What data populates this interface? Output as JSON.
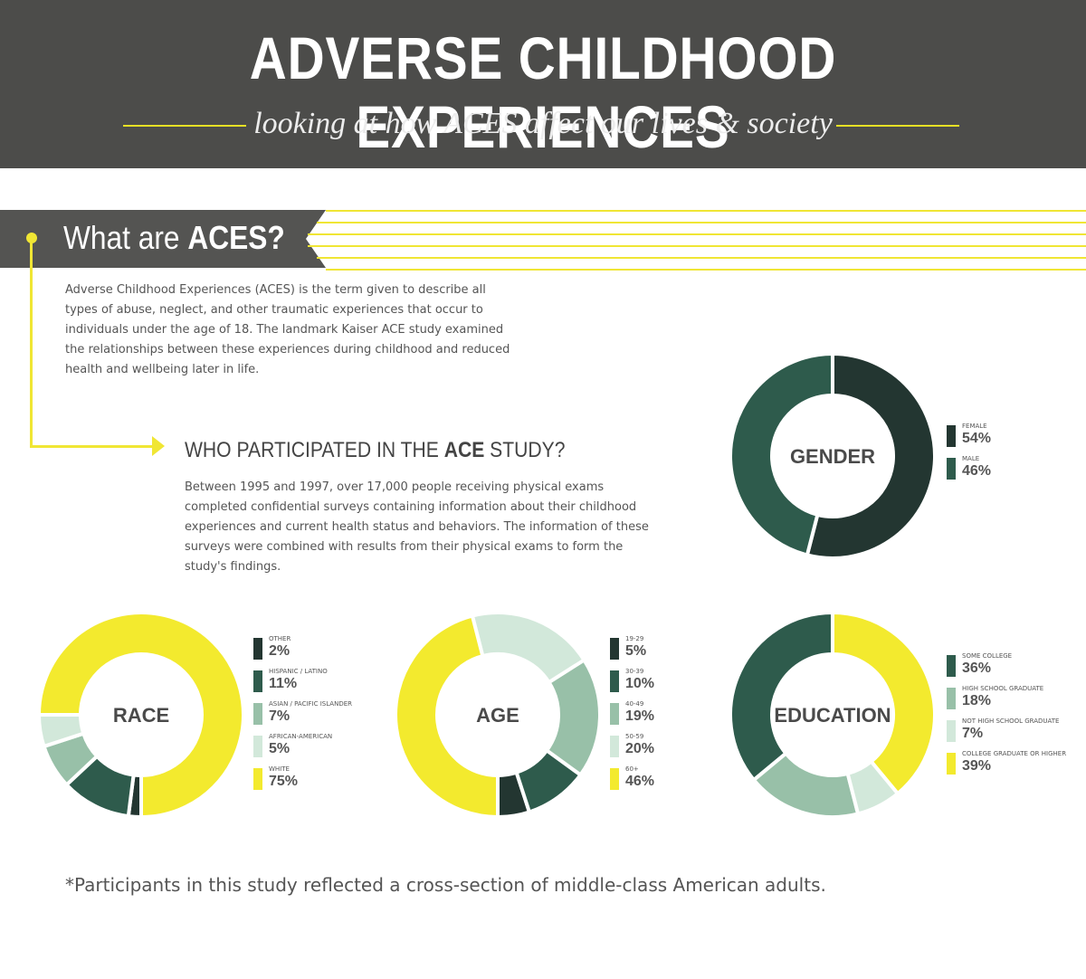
{
  "header": {
    "title": "ADVERSE CHILDHOOD EXPERIENCES",
    "subtitle": "looking at how ACES affect our lives & society"
  },
  "section": {
    "title_prefix": "What are ",
    "title_emphasis": "ACES?",
    "body": "Adverse Childhood Experiences (ACES) is the term given to describe all types of abuse, neglect, and other traumatic experiences that occur to individuals under the age of 18. The landmark Kaiser ACE study examined the relationships between these experiences during childhood and reduced health and wellbeing later in life."
  },
  "participants": {
    "title_prefix": "WHO PARTICIPATED IN THE ",
    "title_emphasis": "ACE",
    "title_suffix": " STUDY?",
    "body": "Between 1995 and 1997, over 17,000 people receiving physical exams completed confidential surveys containing information about their childhood experiences and current health status and behaviors. The information of these surveys were combined with results from their physical exams to form the study's findings."
  },
  "footnote": "*Participants in this study reflected a cross-section of middle-class American adults.",
  "colors": {
    "dark": "#233631",
    "teal": "#2e5b4c",
    "sage": "#98c0a8",
    "mint": "#d2e8da",
    "yellow": "#f3ea2e",
    "header_bg": "#4c4c4a",
    "accent_line": "#e6e025"
  },
  "chart_data": [
    {
      "type": "pie",
      "donut": true,
      "title": "GENDER",
      "categories": [
        "FEMALE",
        "MALE"
      ],
      "values": [
        54,
        46
      ],
      "value_labels": [
        "54%",
        "46%"
      ],
      "colors": [
        "#233631",
        "#2e5b4c"
      ],
      "legend": "right"
    },
    {
      "type": "pie",
      "donut": true,
      "title": "RACE",
      "categories": [
        "OTHER",
        "HISPANIC / LATINO",
        "ASIAN / PACIFIC ISLANDER",
        "AFRICAN-AMERICAN",
        "WHITE"
      ],
      "values": [
        2,
        11,
        7,
        5,
        75
      ],
      "value_labels": [
        "2%",
        "11%",
        "7%",
        "5%",
        "75%"
      ],
      "colors": [
        "#233631",
        "#2e5b4c",
        "#98c0a8",
        "#d2e8da",
        "#f3ea2e"
      ],
      "legend": "right"
    },
    {
      "type": "pie",
      "donut": true,
      "title": "AGE",
      "categories": [
        "19-29",
        "30-39",
        "40-49",
        "50-59",
        "60+"
      ],
      "values": [
        5,
        10,
        19,
        20,
        46
      ],
      "value_labels": [
        "5%",
        "10%",
        "19%",
        "20%",
        "46%"
      ],
      "colors": [
        "#233631",
        "#2e5b4c",
        "#98c0a8",
        "#d2e8da",
        "#f3ea2e"
      ],
      "legend": "right"
    },
    {
      "type": "pie",
      "donut": true,
      "title": "EDUCATION",
      "categories": [
        "SOME COLLEGE",
        "HIGH SCHOOL GRADUATE",
        "NOT HIGH SCHOOL GRADUATE",
        "COLLEGE GRADUATE OR HIGHER"
      ],
      "values": [
        36,
        18,
        7,
        39
      ],
      "value_labels": [
        "36%",
        "18%",
        "7%",
        "39%"
      ],
      "colors": [
        "#2e5b4c",
        "#98c0a8",
        "#d2e8da",
        "#f3ea2e"
      ],
      "legend": "right"
    }
  ]
}
